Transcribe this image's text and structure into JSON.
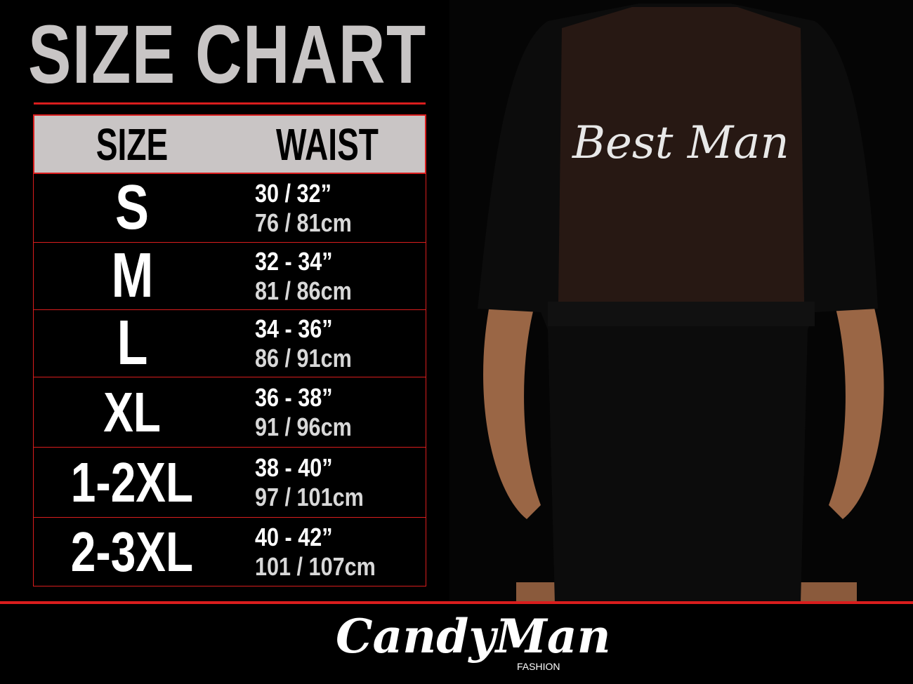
{
  "title": "SIZE CHART",
  "table": {
    "headers": [
      "SIZE",
      "WAIST"
    ],
    "rows": [
      {
        "size": "S",
        "inches": "30 / 32”",
        "cm": "76 / 81cm"
      },
      {
        "size": "M",
        "inches": "32 - 34”",
        "cm": "81 / 86cm"
      },
      {
        "size": "L",
        "inches": "34 - 36”",
        "cm": "86 / 91cm"
      },
      {
        "size": "XL",
        "inches": "36 - 38”",
        "cm": "91 / 96cm"
      },
      {
        "size": "1-2XL",
        "inches": "38 - 40”",
        "cm": "97 / 101cm"
      },
      {
        "size": "2-3XL",
        "inches": "40 - 42”",
        "cm": "101 / 107cm"
      }
    ]
  },
  "garment_print": "Best Man",
  "brand": {
    "name": "CandyMan",
    "sub": "FASHION"
  },
  "colors": {
    "accent": "#d91d1d",
    "header_bg": "#c9c5c5",
    "title": "#c8c5c5"
  }
}
